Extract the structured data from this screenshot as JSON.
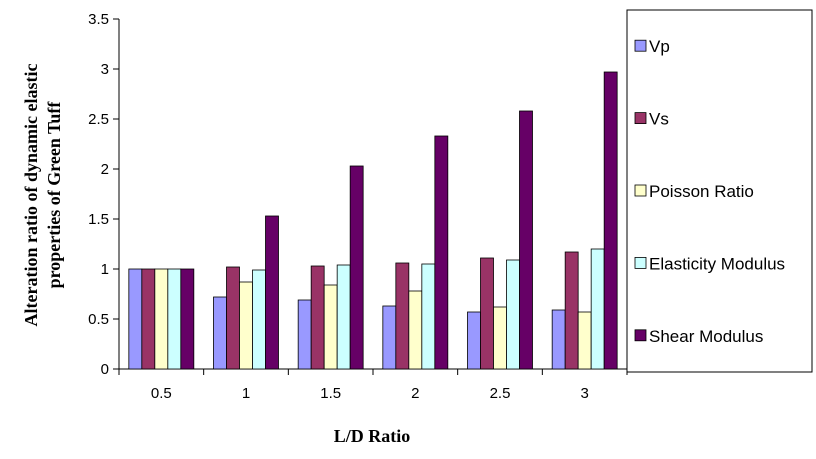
{
  "chart_data": {
    "type": "bar",
    "title": "",
    "xlabel": "L/D Ratio",
    "ylabel_lines": [
      "Alteration ratio of dynamic elastic",
      "properties of Green Tuff"
    ],
    "categories": [
      "0.5",
      "1",
      "1.5",
      "2",
      "2.5",
      "3"
    ],
    "ylim": [
      0,
      3.5
    ],
    "yticks": [
      "0",
      "0.5",
      "1",
      "1.5",
      "2",
      "2.5",
      "3",
      "3.5"
    ],
    "grid": false,
    "legend_position": "right",
    "series": [
      {
        "name": "Vp",
        "color": "#9999ff",
        "values": [
          1.0,
          0.72,
          0.69,
          0.63,
          0.57,
          0.59
        ]
      },
      {
        "name": "Vs",
        "color": "#993366",
        "values": [
          1.0,
          1.02,
          1.03,
          1.06,
          1.11,
          1.17
        ]
      },
      {
        "name": "Poisson Ratio",
        "color": "#ffffcc",
        "values": [
          1.0,
          0.87,
          0.84,
          0.78,
          0.62,
          0.57
        ]
      },
      {
        "name": "Elasticity Modulus",
        "color": "#ccffff",
        "values": [
          1.0,
          0.99,
          1.04,
          1.05,
          1.09,
          1.2
        ]
      },
      {
        "name": "Shear Modulus",
        "color": "#660066",
        "values": [
          1.0,
          1.53,
          2.03,
          2.33,
          2.58,
          2.97
        ]
      }
    ]
  }
}
